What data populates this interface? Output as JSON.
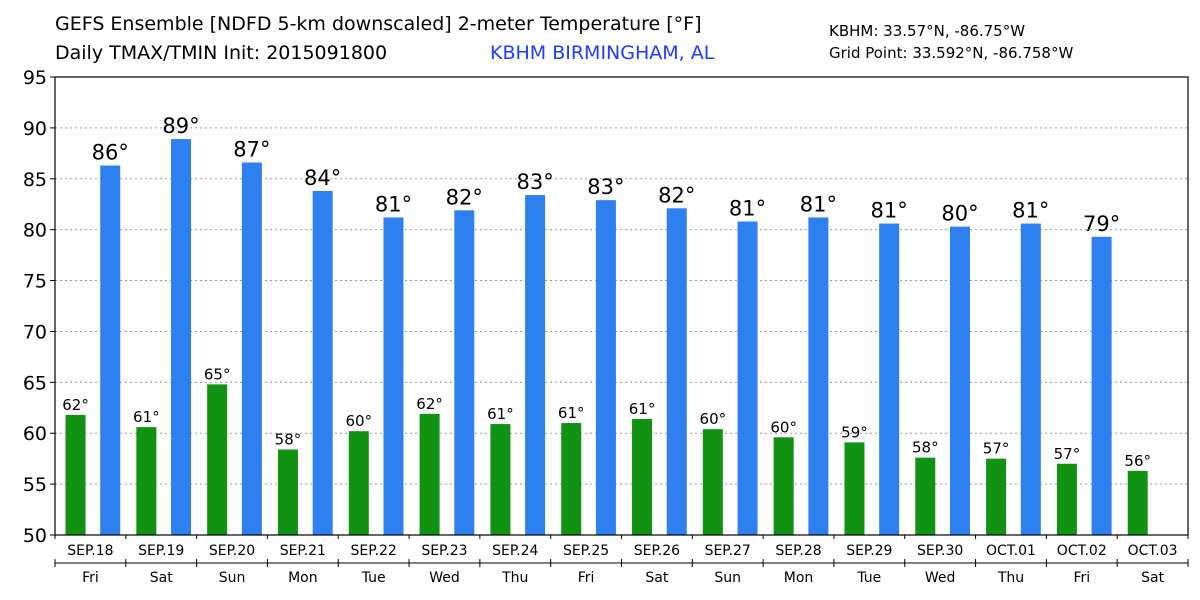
{
  "header": {
    "title": "GEFS Ensemble [NDFD 5-km downscaled] 2-meter Temperature [°F]",
    "subtitle": "Daily TMAX/TMIN Init: 2015091800",
    "location": "KBHM BIRMINGHAM, AL",
    "station_coords": "KBHM: 33.57°N, -86.75°W",
    "grid_point": "Grid Point: 33.592°N, -86.758°W"
  },
  "colors": {
    "tmax": "#2e7fef",
    "tmin": "#129212"
  },
  "chart_data": {
    "type": "bar",
    "title": "GEFS Ensemble [NDFD 5-km downscaled] 2-meter Temperature [°F]",
    "categories": [
      "SEP.18",
      "SEP.19",
      "SEP.20",
      "SEP.21",
      "SEP.22",
      "SEP.23",
      "SEP.24",
      "SEP.25",
      "SEP.26",
      "SEP.27",
      "SEP.28",
      "SEP.29",
      "SEP.30",
      "OCT.01",
      "OCT.02",
      "OCT.03"
    ],
    "days": [
      "Fri",
      "Sat",
      "Sun",
      "Mon",
      "Tue",
      "Wed",
      "Thu",
      "Fri",
      "Sat",
      "Sun",
      "Mon",
      "Tue",
      "Wed",
      "Thu",
      "Fri",
      "Sat"
    ],
    "ylim": [
      50,
      95
    ],
    "yticks": [
      50,
      55,
      60,
      65,
      70,
      75,
      80,
      85,
      90,
      95
    ],
    "grid": true,
    "bars": [
      {
        "series": "TMIN",
        "day": 0,
        "value": 61.8,
        "label": "62°"
      },
      {
        "series": "TMAX",
        "day": 0,
        "value": 86.3,
        "label": "86°"
      },
      {
        "series": "TMIN",
        "day": 1,
        "value": 60.6,
        "label": "61°"
      },
      {
        "series": "TMAX",
        "day": 1,
        "value": 88.9,
        "label": "89°"
      },
      {
        "series": "TMIN",
        "day": 2,
        "value": 64.8,
        "label": "65°"
      },
      {
        "series": "TMAX",
        "day": 2,
        "value": 86.6,
        "label": "87°"
      },
      {
        "series": "TMIN",
        "day": 3,
        "value": 58.4,
        "label": "58°"
      },
      {
        "series": "TMAX",
        "day": 3,
        "value": 83.8,
        "label": "84°"
      },
      {
        "series": "TMIN",
        "day": 4,
        "value": 60.2,
        "label": "60°"
      },
      {
        "series": "TMAX",
        "day": 4,
        "value": 81.2,
        "label": "81°"
      },
      {
        "series": "TMIN",
        "day": 5,
        "value": 61.9,
        "label": "62°"
      },
      {
        "series": "TMAX",
        "day": 5,
        "value": 81.9,
        "label": "82°"
      },
      {
        "series": "TMIN",
        "day": 6,
        "value": 60.9,
        "label": "61°"
      },
      {
        "series": "TMAX",
        "day": 6,
        "value": 83.4,
        "label": "83°"
      },
      {
        "series": "TMIN",
        "day": 7,
        "value": 61.0,
        "label": "61°"
      },
      {
        "series": "TMAX",
        "day": 7,
        "value": 82.9,
        "label": "83°"
      },
      {
        "series": "TMIN",
        "day": 8,
        "value": 61.4,
        "label": "61°"
      },
      {
        "series": "TMAX",
        "day": 8,
        "value": 82.1,
        "label": "82°"
      },
      {
        "series": "TMIN",
        "day": 9,
        "value": 60.4,
        "label": "60°"
      },
      {
        "series": "TMAX",
        "day": 9,
        "value": 80.8,
        "label": "81°"
      },
      {
        "series": "TMIN",
        "day": 10,
        "value": 59.6,
        "label": "60°"
      },
      {
        "series": "TMAX",
        "day": 10,
        "value": 81.2,
        "label": "81°"
      },
      {
        "series": "TMIN",
        "day": 11,
        "value": 59.1,
        "label": "59°"
      },
      {
        "series": "TMAX",
        "day": 11,
        "value": 80.6,
        "label": "81°"
      },
      {
        "series": "TMIN",
        "day": 12,
        "value": 57.6,
        "label": "58°"
      },
      {
        "series": "TMAX",
        "day": 12,
        "value": 80.3,
        "label": "80°"
      },
      {
        "series": "TMIN",
        "day": 13,
        "value": 57.5,
        "label": "57°"
      },
      {
        "series": "TMAX",
        "day": 13,
        "value": 80.6,
        "label": "81°"
      },
      {
        "series": "TMIN",
        "day": 14,
        "value": 57.0,
        "label": "57°"
      },
      {
        "series": "TMAX",
        "day": 14,
        "value": 79.3,
        "label": "79°"
      },
      {
        "series": "TMIN",
        "day": 15,
        "value": 56.3,
        "label": "56°"
      }
    ]
  }
}
